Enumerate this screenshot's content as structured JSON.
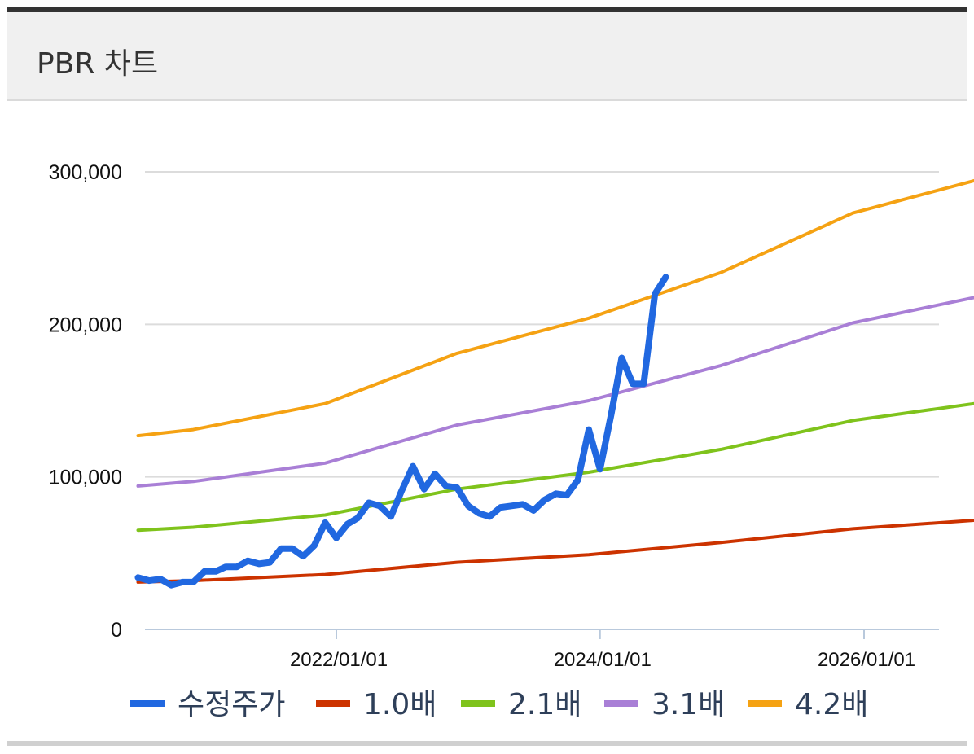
{
  "header": {
    "title": "PBR 차트"
  },
  "chart_data": {
    "type": "line",
    "title": "PBR 차트",
    "xlabel": "",
    "ylabel": "",
    "ylim": [
      0,
      300000
    ],
    "y_ticks": [
      0,
      100000,
      200000,
      300000
    ],
    "y_tick_labels": [
      "0",
      "100,000",
      "200,000",
      "300,000"
    ],
    "x_ticks": [
      "2022-01-01",
      "2024-01-01",
      "2026-01-01"
    ],
    "x_tick_labels": [
      "2022/01/01",
      "2024/01/01",
      "2026/01/01"
    ],
    "x_range": [
      "2020-07-01",
      "2026-12-01"
    ],
    "grid": true,
    "legend": "bottom",
    "series": [
      {
        "name": "수정주가",
        "color": "#2168e0",
        "points": [
          [
            "2020-07-01",
            34000
          ],
          [
            "2020-08-01",
            32000
          ],
          [
            "2020-09-01",
            33000
          ],
          [
            "2020-10-01",
            29000
          ],
          [
            "2020-11-01",
            31000
          ],
          [
            "2020-12-01",
            31000
          ],
          [
            "2021-01-01",
            38000
          ],
          [
            "2021-02-01",
            38000
          ],
          [
            "2021-03-01",
            41000
          ],
          [
            "2021-04-01",
            41000
          ],
          [
            "2021-05-01",
            45000
          ],
          [
            "2021-06-01",
            43000
          ],
          [
            "2021-07-01",
            44000
          ],
          [
            "2021-08-01",
            53000
          ],
          [
            "2021-09-01",
            53000
          ],
          [
            "2021-10-01",
            48000
          ],
          [
            "2021-11-01",
            55000
          ],
          [
            "2021-12-01",
            70000
          ],
          [
            "2022-01-01",
            60000
          ],
          [
            "2022-02-01",
            69000
          ],
          [
            "2022-03-01",
            73000
          ],
          [
            "2022-04-01",
            83000
          ],
          [
            "2022-05-01",
            81000
          ],
          [
            "2022-06-01",
            74000
          ],
          [
            "2022-07-01",
            91000
          ],
          [
            "2022-08-01",
            107000
          ],
          [
            "2022-09-01",
            92000
          ],
          [
            "2022-10-01",
            102000
          ],
          [
            "2022-11-01",
            94000
          ],
          [
            "2022-12-01",
            93000
          ],
          [
            "2023-01-01",
            81000
          ],
          [
            "2023-02-01",
            76000
          ],
          [
            "2023-03-01",
            74000
          ],
          [
            "2023-04-01",
            80000
          ],
          [
            "2023-05-01",
            81000
          ],
          [
            "2023-06-01",
            82000
          ],
          [
            "2023-07-01",
            78000
          ],
          [
            "2023-08-01",
            85000
          ],
          [
            "2023-09-01",
            89000
          ],
          [
            "2023-10-01",
            88000
          ],
          [
            "2023-11-01",
            98000
          ],
          [
            "2023-12-01",
            131000
          ],
          [
            "2024-01-01",
            105000
          ],
          [
            "2024-02-01",
            141000
          ],
          [
            "2024-03-01",
            178000
          ],
          [
            "2024-04-01",
            161000
          ],
          [
            "2024-05-01",
            161000
          ],
          [
            "2024-06-01",
            220000
          ],
          [
            "2024-07-01",
            231000
          ]
        ]
      },
      {
        "name": "1.0배",
        "color": "#cc3300",
        "points": [
          [
            "2020-07-01",
            31000
          ],
          [
            "2020-12-01",
            32000
          ],
          [
            "2021-12-01",
            36000
          ],
          [
            "2022-12-01",
            44000
          ],
          [
            "2023-12-01",
            49000
          ],
          [
            "2024-12-01",
            57000
          ],
          [
            "2025-12-01",
            66000
          ],
          [
            "2026-12-01",
            72000
          ]
        ]
      },
      {
        "name": "2.1배",
        "color": "#7fc31c",
        "points": [
          [
            "2020-07-01",
            65000
          ],
          [
            "2020-12-01",
            67000
          ],
          [
            "2021-12-01",
            75000
          ],
          [
            "2022-12-01",
            92000
          ],
          [
            "2023-12-01",
            103000
          ],
          [
            "2024-12-01",
            118000
          ],
          [
            "2025-12-01",
            137000
          ],
          [
            "2026-12-01",
            149000
          ]
        ]
      },
      {
        "name": "3.1배",
        "color": "#a97fd6",
        "points": [
          [
            "2020-07-01",
            94000
          ],
          [
            "2020-12-01",
            97000
          ],
          [
            "2021-12-01",
            109000
          ],
          [
            "2022-12-01",
            134000
          ],
          [
            "2023-12-01",
            150000
          ],
          [
            "2024-12-01",
            173000
          ],
          [
            "2025-12-01",
            201000
          ],
          [
            "2026-12-01",
            219000
          ]
        ]
      },
      {
        "name": "4.2배",
        "color": "#f5a213",
        "points": [
          [
            "2020-07-01",
            127000
          ],
          [
            "2020-12-01",
            131000
          ],
          [
            "2021-12-01",
            148000
          ],
          [
            "2022-12-01",
            181000
          ],
          [
            "2023-12-01",
            204000
          ],
          [
            "2024-12-01",
            234000
          ],
          [
            "2025-12-01",
            273000
          ],
          [
            "2026-12-01",
            296000
          ]
        ]
      }
    ]
  }
}
